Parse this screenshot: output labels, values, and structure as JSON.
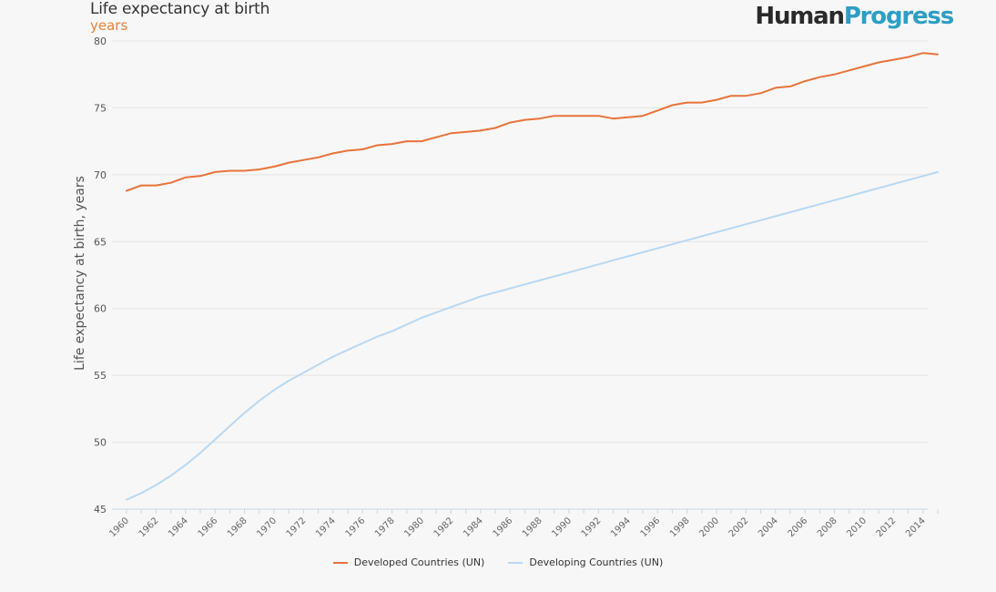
{
  "header": {
    "title": "Life expectancy at birth",
    "subtitle": "years",
    "brand_part1": "Human",
    "brand_part2": "Progress"
  },
  "colors": {
    "developed": "#e8733a",
    "developing": "#b8d8f2",
    "brand_dark": "#2a2a2a",
    "brand_blue": "#2e9ec4",
    "subtitle": "#e9803a"
  },
  "chart_data": {
    "type": "line",
    "title": "Life expectancy at birth",
    "subtitle": "years",
    "ylabel": "Life expectancy at birth, years",
    "xlabel": "",
    "ylim": [
      45,
      80
    ],
    "yticks": [
      45,
      50,
      55,
      60,
      65,
      70,
      75,
      80
    ],
    "x": [
      1960,
      1961,
      1962,
      1963,
      1964,
      1965,
      1966,
      1967,
      1968,
      1969,
      1970,
      1971,
      1972,
      1973,
      1974,
      1975,
      1976,
      1977,
      1978,
      1979,
      1980,
      1981,
      1982,
      1983,
      1984,
      1985,
      1986,
      1987,
      1988,
      1989,
      1990,
      1991,
      1992,
      1993,
      1994,
      1995,
      1996,
      1997,
      1998,
      1999,
      2000,
      2001,
      2002,
      2003,
      2004,
      2005,
      2006,
      2007,
      2008,
      2009,
      2010,
      2011,
      2012,
      2013,
      2014,
      2015
    ],
    "xtick_labels": [
      "1960",
      "1962",
      "1964",
      "1966",
      "1968",
      "1970",
      "1972",
      "1974",
      "1976",
      "1978",
      "1980",
      "1982",
      "1984",
      "1986",
      "1988",
      "1990",
      "1992",
      "1994",
      "1996",
      "1998",
      "2000",
      "2002",
      "2004",
      "2006",
      "2008",
      "2010",
      "2012",
      "2014"
    ],
    "grid": true,
    "legend_position": "bottom-center",
    "series": [
      {
        "name": "Developed Countries (UN)",
        "values": [
          68.8,
          69.2,
          69.2,
          69.4,
          69.8,
          69.9,
          70.2,
          70.3,
          70.3,
          70.4,
          70.6,
          70.9,
          71.1,
          71.3,
          71.6,
          71.8,
          71.9,
          72.2,
          72.3,
          72.5,
          72.5,
          72.8,
          73.1,
          73.2,
          73.3,
          73.5,
          73.9,
          74.1,
          74.2,
          74.4,
          74.4,
          74.4,
          74.4,
          74.2,
          74.3,
          74.4,
          74.8,
          75.2,
          75.4,
          75.4,
          75.6,
          75.9,
          75.9,
          76.1,
          76.5,
          76.6,
          77.0,
          77.3,
          77.5,
          77.8,
          78.1,
          78.4,
          78.6,
          78.8,
          79.1,
          79.0
        ]
      },
      {
        "name": "Developing Countries (UN)",
        "values": [
          45.7,
          46.2,
          46.8,
          47.5,
          48.3,
          49.2,
          50.2,
          51.2,
          52.2,
          53.1,
          53.9,
          54.6,
          55.2,
          55.8,
          56.4,
          56.9,
          57.4,
          57.9,
          58.3,
          58.8,
          59.3,
          59.7,
          60.1,
          60.5,
          60.9,
          61.2,
          61.5,
          61.8,
          62.1,
          62.4,
          62.7,
          63.0,
          63.3,
          63.6,
          63.9,
          64.2,
          64.5,
          64.8,
          65.1,
          65.4,
          65.7,
          66.0,
          66.3,
          66.6,
          66.9,
          67.2,
          67.5,
          67.8,
          68.1,
          68.4,
          68.7,
          69.0,
          69.3,
          69.6,
          69.9,
          70.2
        ]
      }
    ]
  }
}
